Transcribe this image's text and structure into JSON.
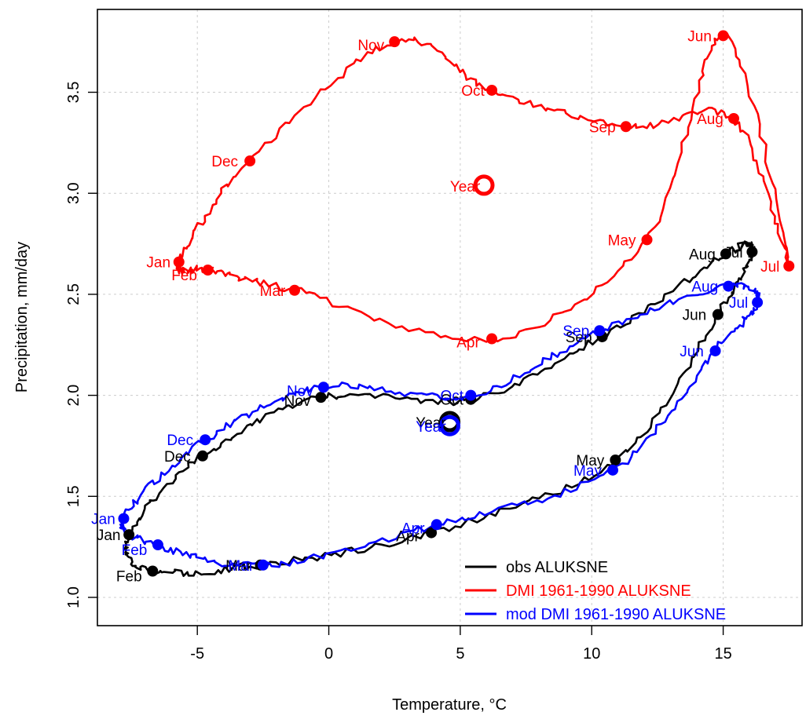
{
  "chart_data": {
    "type": "line",
    "xlabel": "Temperature, °C",
    "ylabel": "Precipitation, mm/day",
    "xlim": [
      -8.8,
      18.0
    ],
    "ylim": [
      0.86,
      3.91
    ],
    "xticks": [
      -5,
      0,
      5,
      10,
      15
    ],
    "yticks": [
      1.0,
      1.5,
      2.0,
      2.5,
      3.0,
      3.5
    ],
    "xtick_labels": [
      "-5",
      "0",
      "5",
      "10",
      "15"
    ],
    "ytick_labels": [
      "1.0",
      "1.5",
      "2.0",
      "2.5",
      "3.0",
      "3.5"
    ],
    "grid": true,
    "legend_position": "bottom-right",
    "series": [
      {
        "name": "obs ALUKSNE",
        "color": "#000000",
        "monthly": [
          {
            "label": "Jan",
            "x": -7.6,
            "y": 1.31
          },
          {
            "label": "Feb",
            "x": -6.7,
            "y": 1.13
          },
          {
            "label": "Mar",
            "x": -2.6,
            "y": 1.16
          },
          {
            "label": "Apr",
            "x": 3.9,
            "y": 1.32
          },
          {
            "label": "May",
            "x": 10.9,
            "y": 1.68
          },
          {
            "label": "Jun",
            "x": 14.8,
            "y": 2.4
          },
          {
            "label": "Jul",
            "x": 16.1,
            "y": 2.71
          },
          {
            "label": "Aug",
            "x": 15.1,
            "y": 2.7
          },
          {
            "label": "Sep",
            "x": 10.4,
            "y": 2.29
          },
          {
            "label": "Oct",
            "x": 5.4,
            "y": 1.98
          },
          {
            "label": "Nov",
            "x": -0.3,
            "y": 1.99
          },
          {
            "label": "Dec",
            "x": -4.8,
            "y": 1.7
          }
        ],
        "annual": {
          "label": "Year",
          "x": 4.6,
          "y": 1.87
        }
      },
      {
        "name": "DMI 1961-1990 ALUKSNE",
        "color": "#ff0000",
        "monthly": [
          {
            "label": "Jan",
            "x": -5.7,
            "y": 2.66
          },
          {
            "label": "Feb",
            "x": -4.6,
            "y": 2.62
          },
          {
            "label": "Mar",
            "x": -1.3,
            "y": 2.52
          },
          {
            "label": "Apr",
            "x": 6.2,
            "y": 2.28
          },
          {
            "label": "May",
            "x": 12.1,
            "y": 2.77
          },
          {
            "label": "Jun",
            "x": 15.0,
            "y": 3.78
          },
          {
            "label": "Jul",
            "x": 17.5,
            "y": 2.64
          },
          {
            "label": "Aug",
            "x": 15.4,
            "y": 3.37
          },
          {
            "label": "Sep",
            "x": 11.3,
            "y": 3.33
          },
          {
            "label": "Oct",
            "x": 6.2,
            "y": 3.51
          },
          {
            "label": "Nov",
            "x": 2.5,
            "y": 3.75
          },
          {
            "label": "Dec",
            "x": -3.0,
            "y": 3.16
          }
        ],
        "annual": {
          "label": "Year",
          "x": 5.9,
          "y": 3.04
        }
      },
      {
        "name": "mod DMI 1961-1990 ALUKSNE",
        "color": "#0000ff",
        "monthly": [
          {
            "label": "Jan",
            "x": -7.8,
            "y": 1.39
          },
          {
            "label": "Feb",
            "x": -6.5,
            "y": 1.26
          },
          {
            "label": "Mar",
            "x": -2.5,
            "y": 1.16
          },
          {
            "label": "Apr",
            "x": 4.1,
            "y": 1.36
          },
          {
            "label": "May",
            "x": 10.8,
            "y": 1.63
          },
          {
            "label": "Jun",
            "x": 14.7,
            "y": 2.22
          },
          {
            "label": "Jul",
            "x": 16.3,
            "y": 2.46
          },
          {
            "label": "Aug",
            "x": 15.2,
            "y": 2.54
          },
          {
            "label": "Sep",
            "x": 10.3,
            "y": 2.32
          },
          {
            "label": "Oct",
            "x": 5.4,
            "y": 2.0
          },
          {
            "label": "Nov",
            "x": -0.2,
            "y": 2.04
          },
          {
            "label": "Dec",
            "x": -4.7,
            "y": 1.78
          }
        ],
        "annual": {
          "label": "Year",
          "x": 4.6,
          "y": 1.85
        }
      }
    ]
  }
}
